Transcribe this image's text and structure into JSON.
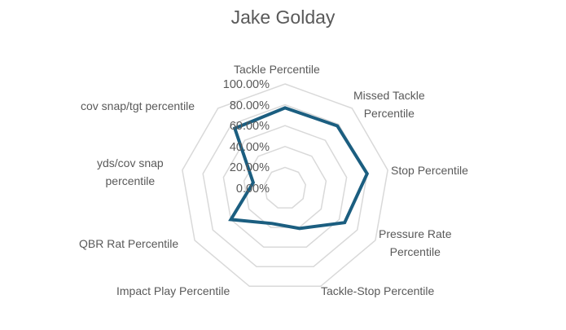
{
  "chart_data": {
    "type": "radar",
    "title": "Jake Golday",
    "categories": [
      "Tackle Percentile",
      "Missed Tackle Percentile",
      "Stop Percentile",
      "Pressure Rate Percentile",
      "Tackle-Stop Percentile",
      "Impact Play Percentile",
      "QBR Rat Percentile",
      "yds/cov snap percentile",
      "cov snap/tgt percentile"
    ],
    "series": [
      {
        "name": "Jake Golday",
        "values": [
          0.77,
          0.78,
          0.8,
          0.66,
          0.41,
          0.36,
          0.6,
          0.31,
          0.75
        ],
        "color": "#1b5e80"
      }
    ],
    "radial_ticks": [
      "0.00%",
      "20.00%",
      "40.00%",
      "60.00%",
      "80.00%",
      "100.00%"
    ],
    "rlim": [
      0,
      1
    ],
    "grid": true,
    "legend": "none"
  },
  "axis_labels": [
    {
      "lines": [
        "Tackle Percentile"
      ]
    },
    {
      "lines": [
        "Missed Tackle",
        "Percentile"
      ]
    },
    {
      "lines": [
        "Stop Percentile"
      ]
    },
    {
      "lines": [
        "Pressure Rate",
        "Percentile"
      ]
    },
    {
      "lines": [
        "Tackle-Stop Percentile"
      ]
    },
    {
      "lines": [
        "Impact Play Percentile"
      ]
    },
    {
      "lines": [
        "QBR Rat Percentile"
      ]
    },
    {
      "lines": [
        "yds/cov snap",
        "percentile"
      ]
    },
    {
      "lines": [
        "cov snap/tgt percentile"
      ]
    }
  ],
  "colors": {
    "grid": "#d9d9d9",
    "text": "#595959",
    "series": "#1b5e80"
  }
}
